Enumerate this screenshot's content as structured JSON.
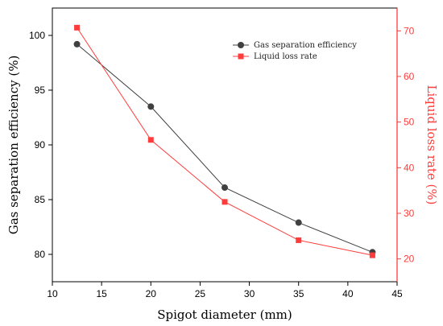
{
  "chart_data": {
    "type": "line",
    "x": [
      12.5,
      20,
      27.5,
      35,
      42.5
    ],
    "xlabel": "Spigot diameter (mm)",
    "xlim": [
      10,
      45
    ],
    "xticks": [
      "10",
      "15",
      "20",
      "25",
      "30",
      "35",
      "40",
      "45"
    ],
    "ylabel_left": "Gas separation efficiency (%)",
    "ylim_left": [
      77.5,
      102.5
    ],
    "yticks_left": [
      "80",
      "85",
      "90",
      "95",
      "100"
    ],
    "ylabel_right": "Liquid loss rate (%)",
    "ylim_right": [
      15,
      75
    ],
    "yticks_right": [
      "20",
      "30",
      "40",
      "50",
      "60",
      "70"
    ],
    "grid": false,
    "legend_position": "top-right",
    "series": [
      {
        "name": "Gas separation efficiency",
        "axis": "left",
        "values": [
          99.2,
          93.5,
          86.1,
          82.9,
          80.2
        ],
        "color": "#404040",
        "marker": "circle"
      },
      {
        "name": "Liquid loss rate",
        "axis": "right",
        "values": [
          70.7,
          46.1,
          32.5,
          24.1,
          20.8
        ],
        "color": "#ff3c3c",
        "marker": "square"
      }
    ]
  }
}
